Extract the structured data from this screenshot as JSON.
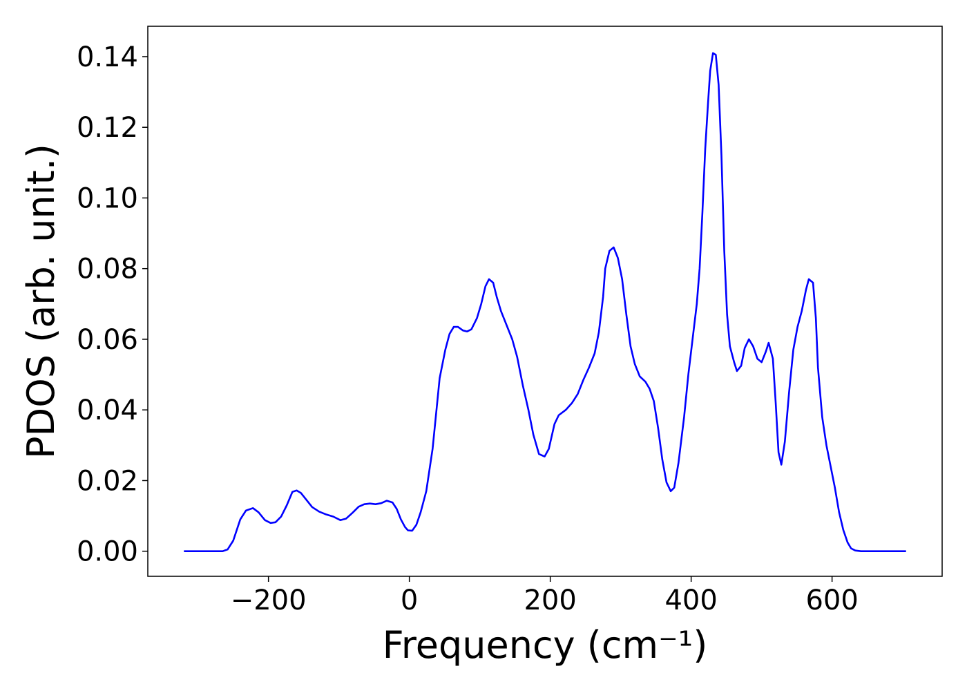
{
  "chart_data": {
    "type": "line",
    "x_label": "Frequency (cm⁻¹)",
    "y_label": "PDOS (arb. unit.)",
    "xlim": [
      -371.25,
      756.25
    ],
    "ylim": [
      -0.0071,
      0.1486
    ],
    "xticks": [
      {
        "value": -200,
        "label": "−200"
      },
      0,
      200,
      400,
      600
    ],
    "yticks": [
      {
        "value": 0,
        "label": "0.00"
      },
      0.02,
      0.04,
      0.06,
      0.08,
      {
        "value": 0.1,
        "label": "0.10"
      },
      0.12,
      0.14
    ],
    "grid": false,
    "series": [
      {
        "color": "#0000ff",
        "x": [
          -320,
          -300,
          -280,
          -265,
          -258,
          -250,
          -240,
          -232,
          -222,
          -214,
          -205,
          -197,
          -190,
          -182,
          -174,
          -166,
          -160,
          -154,
          -146,
          -138,
          -128,
          -118,
          -108,
          -98,
          -90,
          -80,
          -72,
          -64,
          -56,
          -48,
          -40,
          -32,
          -24,
          -18,
          -12,
          -6,
          -2,
          4,
          10,
          16,
          24,
          33,
          43,
          51,
          57,
          63,
          69,
          76,
          82,
          88,
          96,
          102,
          108,
          113,
          119,
          124,
          130,
          138,
          146,
          153,
          161,
          169,
          176,
          184,
          192,
          198,
          206,
          212,
          222,
          231,
          239,
          247,
          255,
          263,
          269,
          275,
          278,
          284,
          290,
          296,
          302,
          308,
          314,
          320,
          327,
          335,
          341,
          347,
          353,
          359,
          365,
          371,
          376,
          382,
          390,
          396,
          402,
          408,
          412,
          416,
          420,
          424,
          427,
          431,
          435,
          439,
          443,
          447,
          451,
          455,
          461,
          465,
          471,
          476,
          482,
          488,
          494,
          500,
          506,
          510,
          516,
          520,
          524,
          528,
          533,
          539,
          545,
          551,
          557,
          563,
          567,
          573,
          577,
          580,
          586,
          592,
          598,
          604,
          610,
          616,
          622,
          627,
          633,
          641,
          660,
          680,
          705
        ],
        "values": [
          0,
          0,
          0,
          0,
          0.0005,
          0.003,
          0.009,
          0.0115,
          0.0122,
          0.011,
          0.0088,
          0.008,
          0.0082,
          0.0098,
          0.013,
          0.0168,
          0.0172,
          0.0165,
          0.0145,
          0.0125,
          0.0112,
          0.0104,
          0.0098,
          0.0088,
          0.0092,
          0.011,
          0.0126,
          0.0133,
          0.0135,
          0.0133,
          0.0136,
          0.0143,
          0.0138,
          0.012,
          0.009,
          0.0068,
          0.0059,
          0.0058,
          0.0075,
          0.011,
          0.017,
          0.029,
          0.049,
          0.057,
          0.0615,
          0.0635,
          0.0635,
          0.0625,
          0.0622,
          0.0628,
          0.066,
          0.07,
          0.075,
          0.077,
          0.076,
          0.072,
          0.068,
          0.064,
          0.06,
          0.055,
          0.047,
          0.04,
          0.033,
          0.0275,
          0.0268,
          0.029,
          0.036,
          0.0385,
          0.04,
          0.042,
          0.0445,
          0.0485,
          0.052,
          0.056,
          0.062,
          0.072,
          0.08,
          0.085,
          0.086,
          0.083,
          0.077,
          0.067,
          0.058,
          0.053,
          0.0495,
          0.048,
          0.046,
          0.0425,
          0.035,
          0.026,
          0.0195,
          0.017,
          0.018,
          0.025,
          0.038,
          0.05,
          0.06,
          0.07,
          0.08,
          0.096,
          0.114,
          0.127,
          0.136,
          0.141,
          0.1405,
          0.132,
          0.112,
          0.085,
          0.067,
          0.058,
          0.0535,
          0.051,
          0.0525,
          0.0575,
          0.06,
          0.058,
          0.0545,
          0.0535,
          0.0565,
          0.059,
          0.0545,
          0.042,
          0.028,
          0.0245,
          0.031,
          0.045,
          0.057,
          0.0635,
          0.068,
          0.074,
          0.077,
          0.076,
          0.066,
          0.052,
          0.038,
          0.03,
          0.024,
          0.018,
          0.011,
          0.006,
          0.0025,
          0.0008,
          0.0002,
          0,
          0,
          0,
          0
        ]
      }
    ]
  }
}
